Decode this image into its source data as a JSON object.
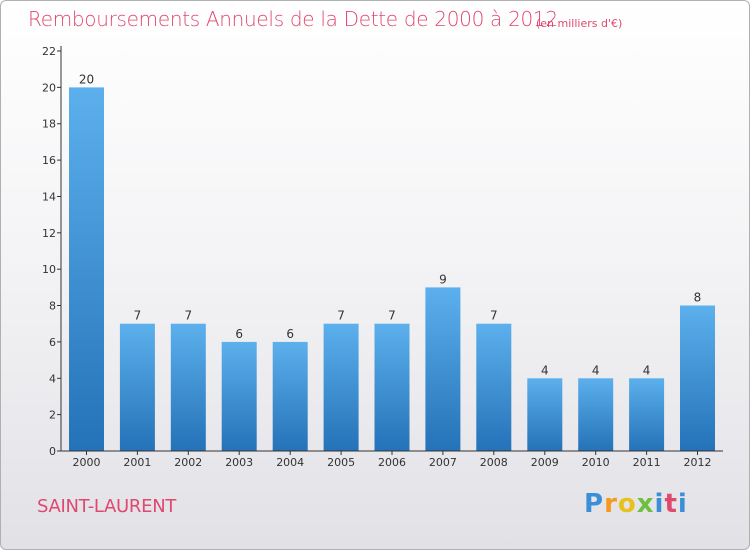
{
  "chart_data": {
    "type": "bar",
    "title": "Remboursements Annuels de la Dette de 2000 à 2012",
    "subtitle": "(en milliers d'€)",
    "xlabel": "",
    "ylabel": "",
    "categories": [
      "2000",
      "2001",
      "2002",
      "2003",
      "2004",
      "2005",
      "2006",
      "2007",
      "2008",
      "2009",
      "2010",
      "2011",
      "2012"
    ],
    "values": [
      20,
      7,
      7,
      6,
      6,
      7,
      7,
      9,
      7,
      4,
      4,
      4,
      8
    ],
    "ylim": [
      0,
      22
    ],
    "yticks": [
      0,
      2,
      4,
      6,
      8,
      10,
      12,
      14,
      16,
      18,
      20,
      22
    ],
    "grid": false,
    "bar_color": "#3a8fd8",
    "bar_color_light": "#5cb0ec",
    "bar_color_dark": "#2472b8"
  },
  "footer": {
    "commune": "SAINT-LAURENT",
    "logo_letters": [
      "P",
      "r",
      "o",
      "x",
      "i",
      "t",
      "i"
    ]
  },
  "colors": {
    "title": "#e0486f",
    "axis": "#333333"
  }
}
